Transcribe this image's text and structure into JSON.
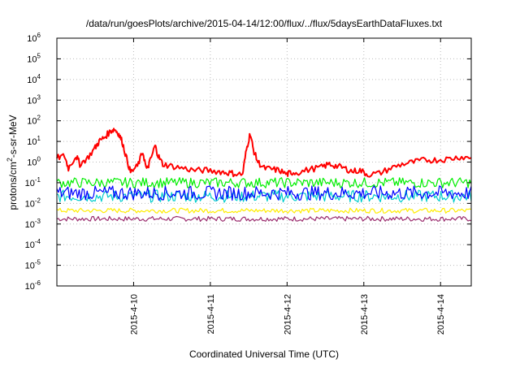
{
  "chart_data": {
    "type": "line",
    "title": "/data/run/goesPlots/archive/2015-04-14/12:00/flux/../flux/5daysEarthDataFluxes.txt",
    "xlabel": "Coordinated Universal Time (UTC)",
    "ylabel": "protons/cm2-s-sr-MeV",
    "ylabel_parts": {
      "base": "protons/cm",
      "sup": "2",
      "rest": "-s-sr-MeV"
    },
    "yscale": "log",
    "ylim_exp": [
      -6,
      6
    ],
    "y_ticks": [
      {
        "base": "10",
        "exp": "-6",
        "v": -6
      },
      {
        "base": "10",
        "exp": "-5",
        "v": -5
      },
      {
        "base": "10",
        "exp": "-4",
        "v": -4
      },
      {
        "base": "10",
        "exp": "-3",
        "v": -3
      },
      {
        "base": "10",
        "exp": "-2",
        "v": -2
      },
      {
        "base": "10",
        "exp": "-1",
        "v": -1
      },
      {
        "base": "10",
        "exp": "0",
        "v": 0
      },
      {
        "base": "10",
        "exp": "1",
        "v": 1
      },
      {
        "base": "10",
        "exp": "2",
        "v": 2
      },
      {
        "base": "10",
        "exp": "3",
        "v": 3
      },
      {
        "base": "10",
        "exp": "4",
        "v": 4
      },
      {
        "base": "10",
        "exp": "5",
        "v": 5
      },
      {
        "base": "10",
        "exp": "6",
        "v": 6
      }
    ],
    "x_range_days": [
      0,
      5.4
    ],
    "x_ticks": [
      {
        "label": "2015-4-10",
        "day": 1
      },
      {
        "label": "2015-4-11",
        "day": 2
      },
      {
        "label": "2015-4-12",
        "day": 3
      },
      {
        "label": "2015-4-13",
        "day": 4
      },
      {
        "label": "2015-4-14",
        "day": 5
      }
    ],
    "grid": true,
    "series": [
      {
        "color": "#ff0000",
        "width": 2,
        "noise": 0.15,
        "points": [
          [
            0,
            0.2
          ],
          [
            0.1,
            0.3
          ],
          [
            0.15,
            -0.3
          ],
          [
            0.25,
            0.3
          ],
          [
            0.3,
            -0.1
          ],
          [
            0.4,
            0.2
          ],
          [
            0.5,
            0.7
          ],
          [
            0.55,
            1.0
          ],
          [
            0.62,
            1.2
          ],
          [
            0.7,
            1.5
          ],
          [
            0.75,
            1.6
          ],
          [
            0.8,
            1.4
          ],
          [
            0.85,
            1.0
          ],
          [
            0.9,
            0.3
          ],
          [
            0.96,
            -0.5
          ],
          [
            1.05,
            -0.2
          ],
          [
            1.12,
            0.5
          ],
          [
            1.17,
            -0.4
          ],
          [
            1.22,
            0.1
          ],
          [
            1.28,
            0.8
          ],
          [
            1.32,
            0.3
          ],
          [
            1.38,
            -0.1
          ],
          [
            1.5,
            -0.2
          ],
          [
            1.65,
            -0.3
          ],
          [
            1.8,
            -0.4
          ],
          [
            1.95,
            -0.4
          ],
          [
            2.1,
            -0.45
          ],
          [
            2.2,
            -0.5
          ],
          [
            2.3,
            -0.55
          ],
          [
            2.42,
            -0.6
          ],
          [
            2.47,
            0.6
          ],
          [
            2.52,
            1.4
          ],
          [
            2.56,
            0.6
          ],
          [
            2.62,
            0.0
          ],
          [
            2.7,
            -0.3
          ],
          [
            2.8,
            -0.35
          ],
          [
            2.9,
            -0.4
          ],
          [
            3.0,
            -0.6
          ],
          [
            3.05,
            -0.5
          ],
          [
            3.15,
            -0.5
          ],
          [
            3.3,
            -0.35
          ],
          [
            3.45,
            -0.25
          ],
          [
            3.55,
            -0.1
          ],
          [
            3.65,
            -0.2
          ],
          [
            3.75,
            -0.3
          ],
          [
            3.85,
            -0.45
          ],
          [
            3.95,
            -0.4
          ],
          [
            4.05,
            -0.6
          ],
          [
            4.2,
            -0.55
          ],
          [
            4.35,
            -0.3
          ],
          [
            4.5,
            -0.1
          ],
          [
            4.65,
            0.0
          ],
          [
            4.8,
            0.1
          ],
          [
            4.95,
            0.1
          ],
          [
            5.1,
            0.15
          ],
          [
            5.25,
            0.25
          ],
          [
            5.4,
            0.2
          ]
        ]
      },
      {
        "color": "#00ee00",
        "width": 1.2,
        "base": -1.0,
        "noise": 0.25,
        "drift": 0.0
      },
      {
        "color": "#00cccc",
        "width": 1.2,
        "base": -1.65,
        "noise": 0.3,
        "drift": 0.0
      },
      {
        "color": "#0000ff",
        "width": 1.2,
        "base": -1.5,
        "noise": 0.35,
        "drift": 0.0
      },
      {
        "color": "#ffee00",
        "width": 1.2,
        "base": -2.35,
        "noise": 0.12,
        "drift": 0.0
      },
      {
        "color": "#9b2c6e",
        "width": 1.2,
        "base": -2.75,
        "noise": 0.12,
        "drift": 0.0
      }
    ]
  }
}
